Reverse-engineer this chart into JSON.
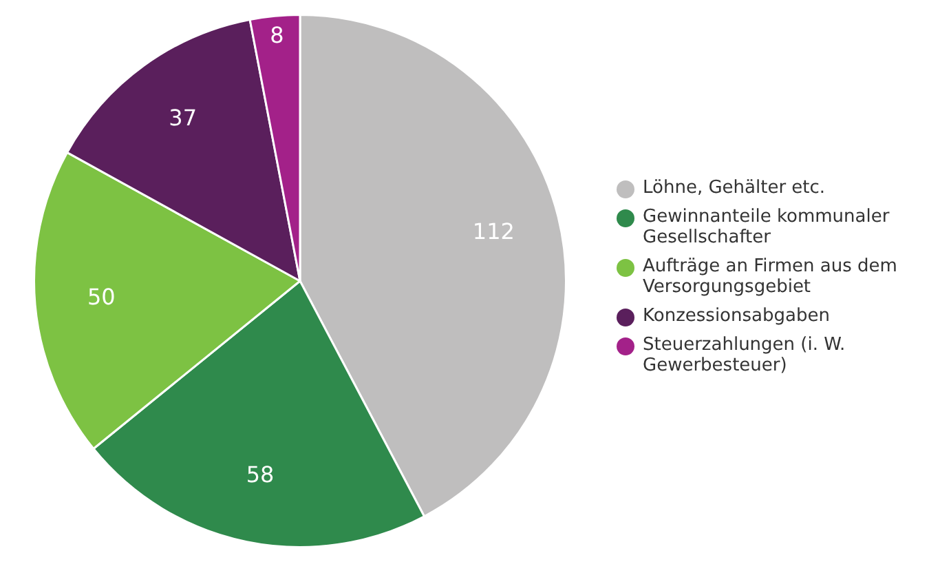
{
  "chart_data": {
    "type": "pie",
    "categories": [
      "Löhne, Gehälter etc.",
      "Gewinnanteile kommunaler Gesellschafter",
      "Aufträge an Firmen aus dem Versorgungsgebiet",
      "Konzessionsabgaben",
      "Steuerzahlungen (i. W. Gewerbesteuer)"
    ],
    "values": [
      112,
      58,
      50,
      37,
      8
    ],
    "colors": [
      "#bfbebe",
      "#2f8a4c",
      "#7dc243",
      "#5a1f5c",
      "#a32189"
    ],
    "data_labels": true,
    "legend": "right"
  }
}
